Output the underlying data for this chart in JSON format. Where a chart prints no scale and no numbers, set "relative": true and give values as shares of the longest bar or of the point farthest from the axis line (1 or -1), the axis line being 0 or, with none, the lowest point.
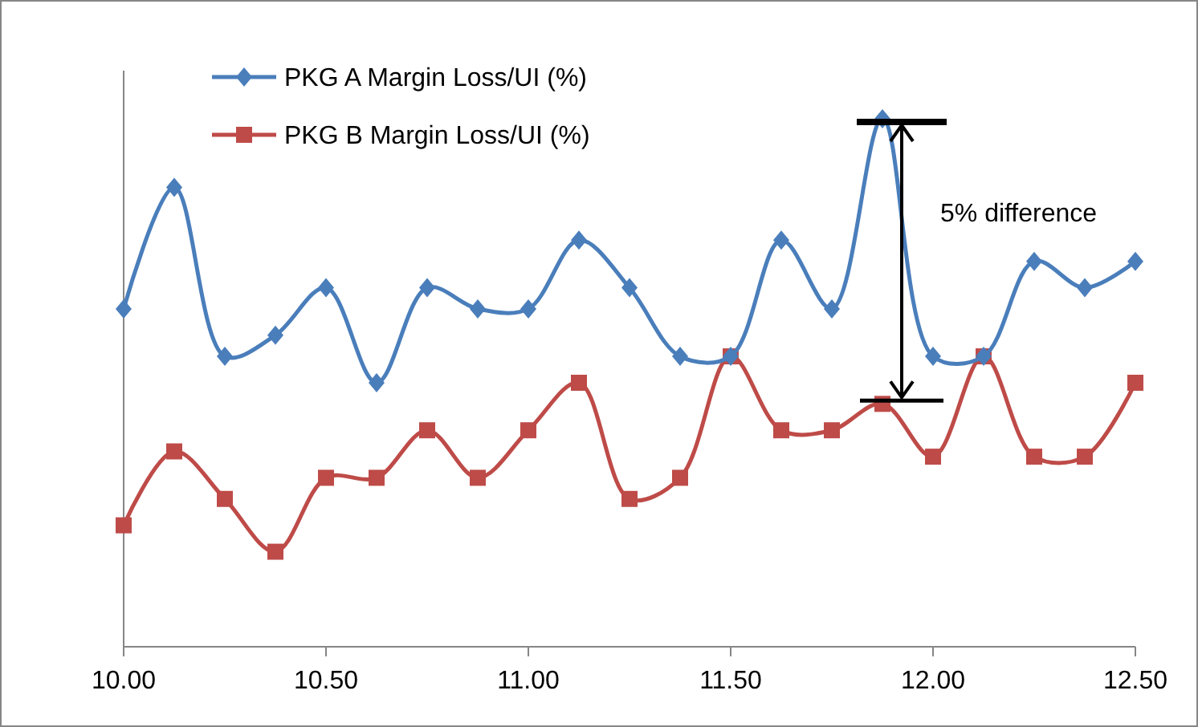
{
  "chart_data": {
    "type": "line",
    "relative": true,
    "x": [
      10,
      10.125,
      10.25,
      10.375,
      10.5,
      10.625,
      10.75,
      10.875,
      11,
      11.125,
      11.25,
      11.375,
      11.5,
      11.625,
      11.75,
      11.875,
      12,
      12.125,
      12.25,
      12.375,
      12.5
    ],
    "xlim": [
      10,
      12.5
    ],
    "xticks": [
      {
        "value": 10,
        "label": "10.00"
      },
      {
        "value": 10.5,
        "label": "10.50"
      },
      {
        "value": 11,
        "label": "11.00"
      },
      {
        "value": 11.5,
        "label": "11.50"
      },
      {
        "value": 12,
        "label": "12.00"
      },
      {
        "value": 12.5,
        "label": "12.50"
      }
    ],
    "series": [
      {
        "name": "PKG A Margin Loss/UI (%)",
        "color": "#4a7ebb",
        "marker": "diamond",
        "values": [
          0.64,
          0.87,
          0.55,
          0.59,
          0.68,
          0.5,
          0.68,
          0.64,
          0.64,
          0.77,
          0.68,
          0.55,
          0.55,
          0.77,
          0.64,
          1,
          0.55,
          0.55,
          0.73,
          0.68,
          0.73
        ]
      },
      {
        "name": "PKG B Margin Loss/UI (%)",
        "color": "#be4b48",
        "marker": "square",
        "values": [
          0.23,
          0.37,
          0.28,
          0.18,
          0.32,
          0.32,
          0.41,
          0.32,
          0.41,
          0.5,
          0.28,
          0.32,
          0.55,
          0.41,
          0.41,
          0.46,
          0.36,
          0.55,
          0.36,
          0.36,
          0.5
        ]
      }
    ],
    "legend": "top left",
    "grid": false,
    "annotations": [
      "5% difference"
    ]
  }
}
